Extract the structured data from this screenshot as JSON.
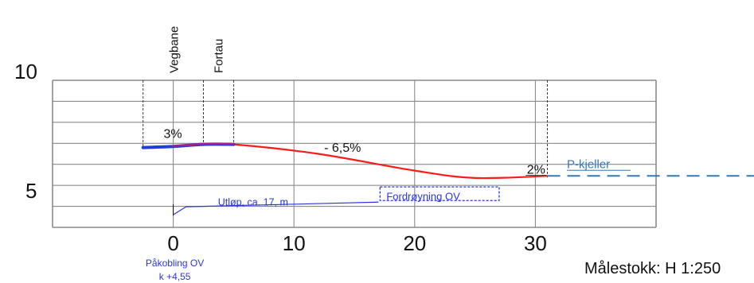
{
  "chart_data": {
    "type": "line",
    "title": "",
    "xlabel": "",
    "ylabel": "",
    "xlim": [
      -10,
      40
    ],
    "ylim": [
      3,
      10
    ],
    "x_ticks": [
      0,
      10,
      20,
      30
    ],
    "x_tick_labels": [
      "0",
      "10",
      "20",
      "30"
    ],
    "y_tick_labels": [
      {
        "value": 10,
        "label": "10"
      },
      {
        "value": 5,
        "label": "5"
      }
    ],
    "grid": true,
    "series": [
      {
        "role": "terrain-profile",
        "color": "#ff1a1a",
        "x": [
          0,
          2.5,
          5,
          12,
          20,
          25,
          31
        ],
        "y": [
          6.85,
          6.95,
          6.95,
          6.5,
          5.7,
          5.35,
          5.45
        ]
      },
      {
        "role": "existing-surface",
        "color": "#1f3fd6",
        "x": [
          -2.5,
          0,
          2.5,
          5
        ],
        "y": [
          6.8,
          6.85,
          6.95,
          6.95
        ]
      },
      {
        "role": "sidewalk-overlay",
        "color": "#b01a8c",
        "x": [
          0,
          2.5,
          5
        ],
        "y": [
          6.87,
          6.97,
          6.97
        ]
      }
    ],
    "dashed_extension": {
      "label": "P-kjeller",
      "color": "#3478b8",
      "x": [
        31,
        50
      ],
      "y": [
        5.45,
        5.45
      ]
    },
    "outlet_line": {
      "label": "Utløp, ca. 17, m",
      "color": "#2a35e0",
      "x": [
        0,
        17
      ],
      "y": [
        3.6,
        4.2
      ]
    },
    "detention_box": {
      "label": "Fordrøyning OV",
      "color": "#2a35e0",
      "x_range": [
        17,
        27
      ],
      "y_range": [
        4.2,
        5
      ]
    },
    "section_labels": [
      {
        "label": "Vegbane",
        "x": 0
      },
      {
        "label": "Fortau",
        "x": 3.7
      }
    ],
    "boundary_lines_x": [
      -2.5,
      2.5,
      5,
      31
    ],
    "slope_labels": [
      {
        "label": "3%",
        "x": -0.8,
        "y": 7.25
      },
      {
        "label": "- 6,5%",
        "x": 12.5,
        "y": 6.6
      },
      {
        "label": "2%",
        "x": 29.3,
        "y": 5.55
      }
    ],
    "connection_label": {
      "line1": "Påkobling OV",
      "line2": "k +4,55",
      "color": "#2a35e0"
    },
    "scale_label": "Målestokk: H 1:250"
  }
}
